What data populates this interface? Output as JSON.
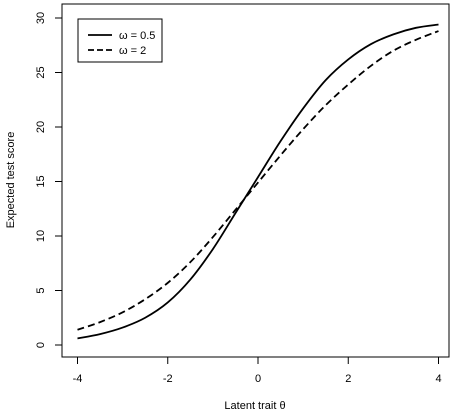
{
  "chart_data": {
    "type": "line",
    "title": "",
    "xlabel": "Latent trait θ",
    "ylabel": "Expected test score",
    "xlim": [
      -4,
      4
    ],
    "ylim": [
      0,
      30
    ],
    "x_ticks": [
      -4,
      -2,
      0,
      2,
      4
    ],
    "y_ticks": [
      0,
      5,
      10,
      15,
      20,
      25,
      30
    ],
    "grid": false,
    "legend_position": "top-left",
    "series": [
      {
        "name": "ω = 0.5",
        "line_style": "solid",
        "color": "#000000",
        "x": [
          -4,
          -3.5,
          -3,
          -2.5,
          -2,
          -1.5,
          -1,
          -0.5,
          0,
          0.5,
          1,
          1.5,
          2,
          2.5,
          3,
          3.5,
          4
        ],
        "y": [
          0.6,
          1.0,
          1.6,
          2.5,
          3.9,
          6.0,
          8.8,
          12.1,
          15.4,
          18.7,
          21.7,
          24.3,
          26.2,
          27.6,
          28.5,
          29.1,
          29.4
        ]
      },
      {
        "name": "ω = 2",
        "line_style": "dashed",
        "color": "#000000",
        "x": [
          -4,
          -3.5,
          -3,
          -2.5,
          -2,
          -1.5,
          -1,
          -0.5,
          0,
          0.5,
          1,
          1.5,
          2,
          2.5,
          3,
          3.5,
          4
        ],
        "y": [
          1.4,
          2.1,
          3.0,
          4.2,
          5.7,
          7.6,
          9.9,
          12.4,
          14.9,
          17.4,
          19.8,
          22.0,
          23.9,
          25.6,
          27.0,
          28.0,
          28.8
        ]
      }
    ]
  }
}
